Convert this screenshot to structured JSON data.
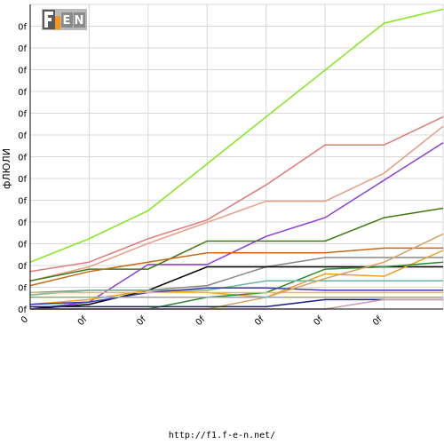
{
  "logo": {
    "text": "F1EN",
    "colors": {
      "bg": "#b0b0b0",
      "accent": "#f7941d",
      "letters": "#ffffff"
    }
  },
  "footer": {
    "url": "http://f1.f-e-n.net/"
  },
  "chart_data": {
    "type": "line",
    "title": "",
    "ylabel": "фЛЮЛИ",
    "xlabel": "",
    "x": [
      0,
      1,
      2,
      3,
      4,
      5,
      6,
      7
    ],
    "x_tick_labels": [
      "0",
      "0f",
      "0f",
      "0f",
      "0f",
      "0f",
      "0f"
    ],
    "y_tick_labels": [
      "0f",
      "0f",
      "0f",
      "0f",
      "0f",
      "0f",
      "0f",
      "0f",
      "0f",
      "0f",
      "0f",
      "0f",
      "0f",
      "0f"
    ],
    "ylim": [
      0,
      130
    ],
    "grid": true,
    "series": [
      {
        "color": "#80e817",
        "values": [
          20,
          30,
          42,
          62,
          82,
          102,
          122,
          128
        ]
      },
      {
        "color": "#e07a78",
        "values": [
          16,
          20,
          30,
          38,
          53,
          70,
          70,
          82
        ]
      },
      {
        "color": "#e89c80",
        "values": [
          12,
          18,
          28,
          37,
          46,
          46,
          58,
          78
        ]
      },
      {
        "color": "#8a3fd8",
        "values": [
          0,
          3,
          19,
          19,
          31,
          39,
          55,
          71
        ]
      },
      {
        "color": "#3c7a10",
        "values": [
          12,
          17,
          17,
          29,
          29,
          29,
          39,
          43
        ]
      },
      {
        "color": "#c86818",
        "values": [
          10,
          16,
          20,
          24,
          24,
          24,
          26,
          26
        ]
      },
      {
        "color": "#888888",
        "values": [
          7,
          8,
          8,
          10,
          18,
          22,
          22,
          22
        ]
      },
      {
        "color": "#000000",
        "values": [
          0,
          2,
          8,
          18,
          18,
          18,
          18,
          18
        ]
      },
      {
        "color": "#f0a020",
        "values": [
          2,
          4,
          8,
          7,
          5,
          15,
          14,
          25
        ]
      },
      {
        "color": "#2d8a2d",
        "values": [
          0,
          0,
          0,
          5,
          7,
          17,
          18,
          20
        ]
      },
      {
        "color": "#6ab7a0",
        "values": [
          6,
          8,
          8,
          8,
          12,
          12,
          12,
          12
        ]
      },
      {
        "color": "#3a3aa8",
        "values": [
          2,
          3,
          7,
          9,
          9,
          8,
          8,
          8
        ]
      },
      {
        "color": "#e6c040",
        "values": [
          7,
          7,
          7,
          7,
          7,
          7,
          7,
          7
        ]
      },
      {
        "color": "#d8a060",
        "values": [
          0,
          0,
          0,
          0,
          5,
          13,
          20,
          32
        ]
      },
      {
        "color": "#a0a0a0",
        "values": [
          5,
          5,
          5,
          5,
          5,
          5,
          5,
          5
        ]
      },
      {
        "color": "#1a1a8a",
        "values": [
          1,
          1,
          1,
          1,
          1,
          4,
          4,
          4
        ]
      },
      {
        "color": "#c8a0a0",
        "values": [
          0,
          0,
          0,
          0,
          0,
          0,
          4,
          4
        ]
      }
    ]
  }
}
